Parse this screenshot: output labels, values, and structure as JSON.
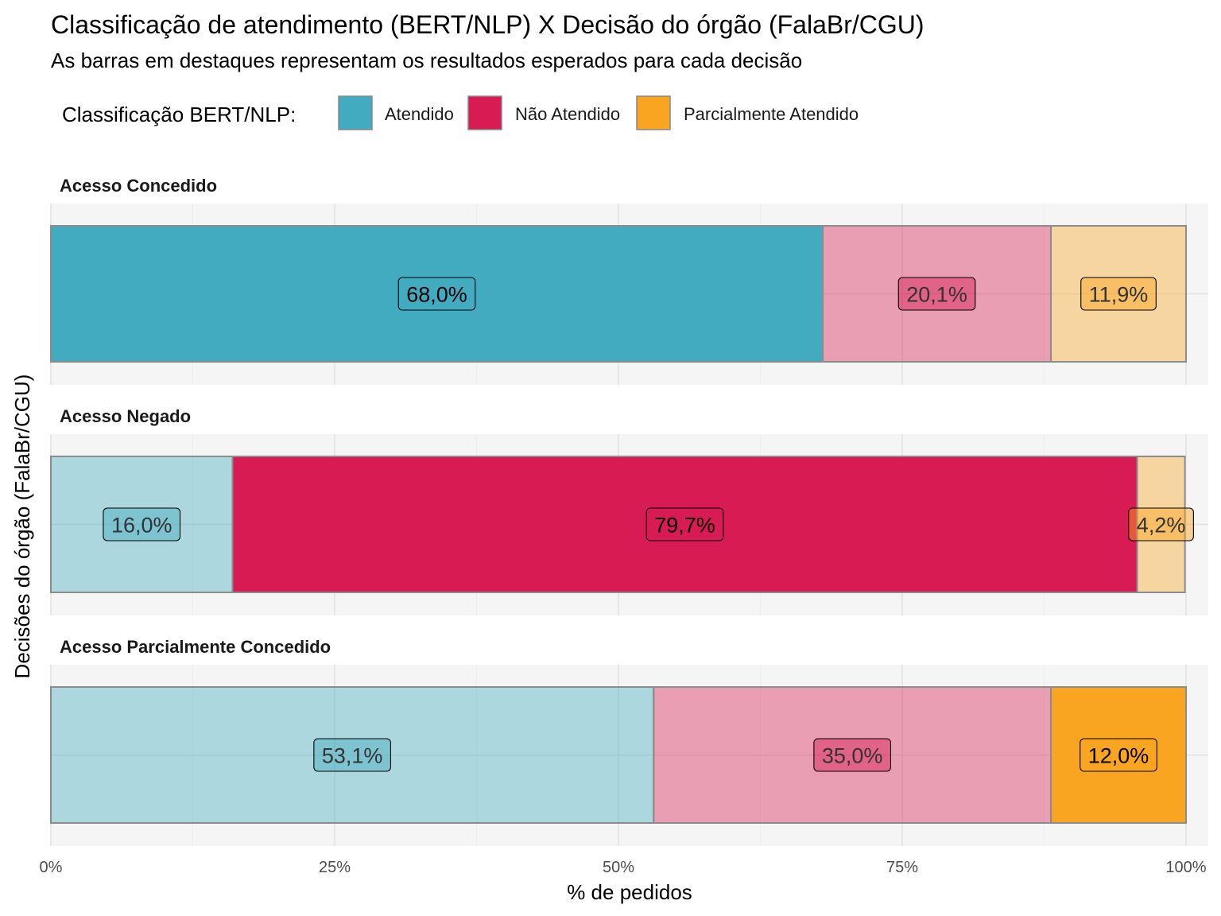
{
  "chart_data": {
    "type": "bar",
    "orientation": "horizontal",
    "stacking": "percent",
    "title": "Classificação de atendimento (BERT/NLP) X Decisão do órgão (FalaBr/CGU)",
    "subtitle": "As barras em destaques representam os resultados esperados para cada decisão",
    "xlabel": "% de pedidos",
    "ylabel": "Decisões do órgão (FalaBr/CGU)",
    "xlim": [
      0,
      100
    ],
    "x_ticks": [
      "0%",
      "25%",
      "50%",
      "75%",
      "100%"
    ],
    "x_tick_values": [
      0,
      25,
      50,
      75,
      100
    ],
    "grid": true,
    "legend": {
      "title": "Classificação BERT/NLP:",
      "position": "top",
      "entries": [
        "Atendido",
        "Não Atendido",
        "Parcialmente Atendido"
      ]
    },
    "series_colors": {
      "Atendido": "#42ABBF",
      "Não Atendido": "#D81B53",
      "Parcialmente Atendido": "#F9A521"
    },
    "facets": [
      {
        "name": "Acesso Concedido",
        "highlight": "Atendido",
        "segments": [
          {
            "series": "Atendido",
            "value": 68.0,
            "label": "68,0%"
          },
          {
            "series": "Não Atendido",
            "value": 20.1,
            "label": "20,1%"
          },
          {
            "series": "Parcialmente Atendido",
            "value": 11.9,
            "label": "11,9%"
          }
        ]
      },
      {
        "name": "Acesso Negado",
        "highlight": "Não Atendido",
        "segments": [
          {
            "series": "Atendido",
            "value": 16.0,
            "label": "16,0%"
          },
          {
            "series": "Não Atendido",
            "value": 79.7,
            "label": "79,7%"
          },
          {
            "series": "Parcialmente Atendido",
            "value": 4.2,
            "label": "4,2%"
          }
        ]
      },
      {
        "name": "Acesso Parcialmente Concedido",
        "highlight": "Parcialmente Atendido",
        "segments": [
          {
            "series": "Atendido",
            "value": 53.1,
            "label": "53,1%"
          },
          {
            "series": "Não Atendido",
            "value": 35.0,
            "label": "35,0%"
          },
          {
            "series": "Parcialmente Atendido",
            "value": 12.0,
            "label": "12,0%"
          }
        ]
      }
    ]
  }
}
